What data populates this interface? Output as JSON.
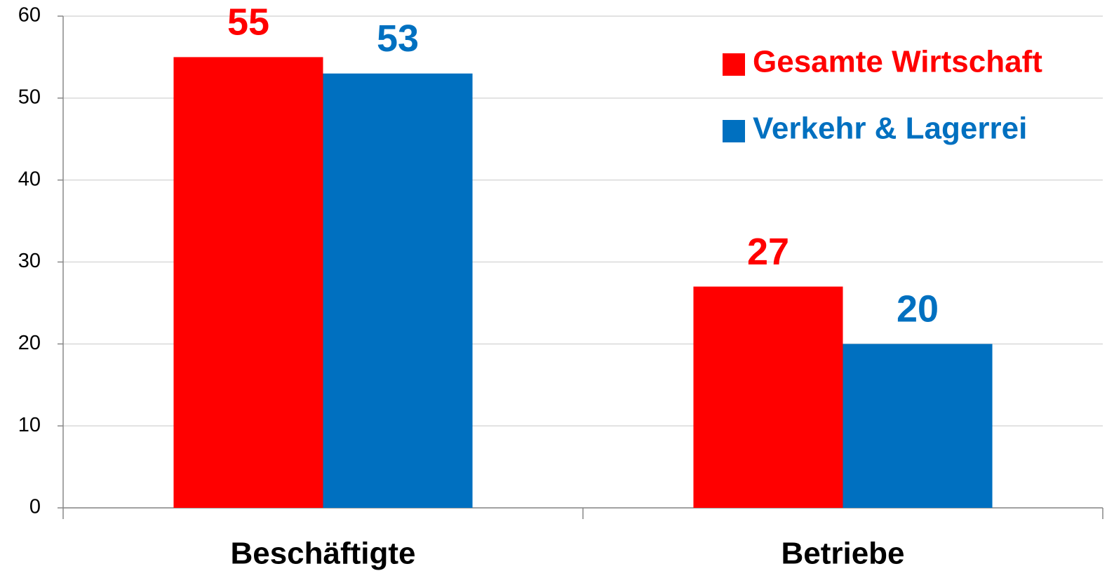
{
  "chart_data": {
    "type": "bar",
    "categories": [
      "Beschäftigte",
      "Betriebe"
    ],
    "series": [
      {
        "name": "Gesamte Wirtschaft",
        "color": "#ff0000",
        "values": [
          55,
          27
        ]
      },
      {
        "name": "Verkehr & Lagerrei",
        "color": "#0070c0",
        "values": [
          53,
          20
        ]
      }
    ],
    "ylim": [
      0,
      60
    ],
    "yticks": [
      0,
      10,
      20,
      30,
      40,
      50,
      60
    ],
    "grid": true,
    "legend": "upper right"
  }
}
